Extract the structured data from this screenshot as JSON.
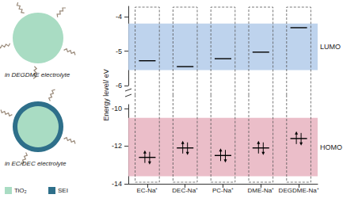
{
  "chart_data": {
    "type": "energy_level",
    "ylabel": "Energy level/ eV",
    "categories": [
      "EC-Na⁺",
      "DEC-Na⁺",
      "PC-Na⁺",
      "DME-Na⁺",
      "DEGDME-Na⁺"
    ],
    "series": [
      {
        "values": [
          -5.28,
          -5.45,
          -5.22,
          -5.03,
          -4.32
        ],
        "marker": "line",
        "color": "#000000"
      },
      {
        "values": [
          -12.6,
          -12.1,
          -12.5,
          -12.1,
          -11.6
        ],
        "marker": "paired_arrows",
        "color": "#000000",
        "axis": "y2"
      }
    ],
    "bands": [
      {
        "name": "LUMO",
        "range": [
          -5.55,
          -4.2
        ],
        "color": "#b3cbea"
      },
      {
        "name": "HOMO",
        "range": [
          -13.6,
          -10.5
        ],
        "color": "#e7b3c0",
        "axis": "y2"
      }
    ],
    "ylim": [
      -6,
      -3.7
    ],
    "yticks": [
      -6,
      -5,
      -4
    ],
    "y2lim": [
      -14,
      -9.8
    ],
    "y2ticks": [
      -14,
      -12,
      -10
    ],
    "grid": false
  },
  "diagram": {
    "panels": [
      {
        "label": "in DEGDME electrolyte",
        "layers": [
          "TiO₂"
        ]
      },
      {
        "label": "in EC/DEC electrolyte",
        "layers": [
          "SEI",
          "TiO₂"
        ]
      }
    ],
    "legend": [
      {
        "label": "TiO₂",
        "color": "#a9dcc3"
      },
      {
        "label": "SEI",
        "color": "#2e6f8a"
      }
    ]
  }
}
